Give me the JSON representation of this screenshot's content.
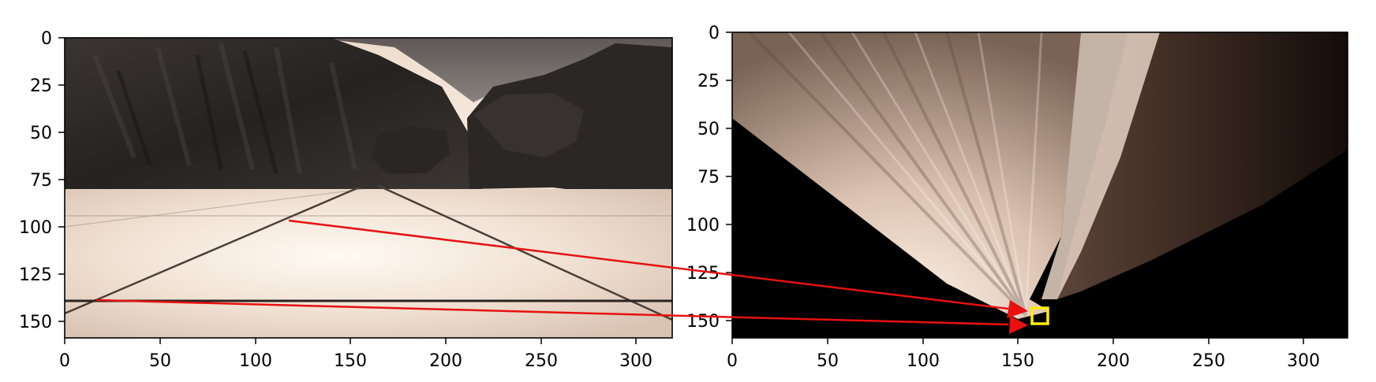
{
  "left_panel": {
    "x_ticks": [
      "0",
      "50",
      "100",
      "150",
      "200",
      "250",
      "300"
    ],
    "y_ticks": [
      "0",
      "25",
      "50",
      "75",
      "100",
      "125",
      "150"
    ]
  },
  "right_panel": {
    "x_ticks": [
      "0",
      "50",
      "100",
      "150",
      "200",
      "250",
      "300"
    ],
    "y_ticks": [
      "0",
      "25",
      "50",
      "75",
      "100",
      "125",
      "150"
    ]
  },
  "colors": {
    "arrow": "#e81010",
    "marker_box": "#ffee00",
    "sky": "#7d7673",
    "rock_dark": "#2c2825",
    "ground_light": "#f2e4d8",
    "warped_black": "#000000"
  }
}
